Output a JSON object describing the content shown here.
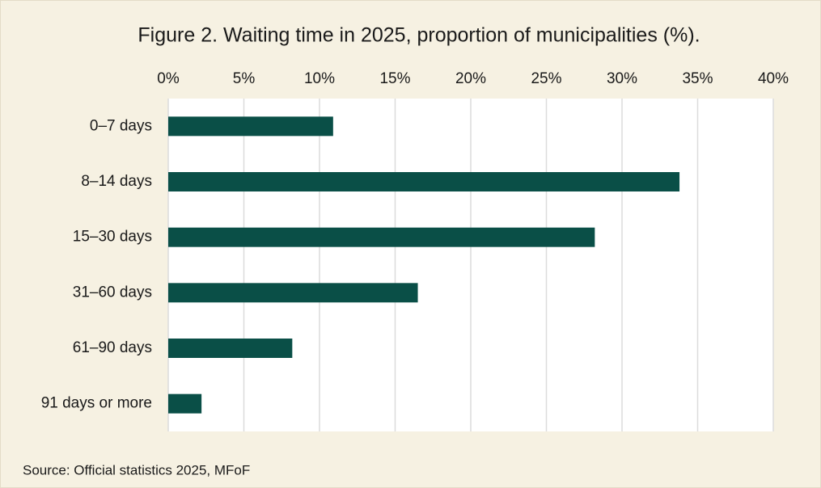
{
  "chart_data": {
    "type": "bar",
    "orientation": "horizontal",
    "title": "Figure 2. Waiting time in 2025, proportion of municipalities (%).",
    "source": "Source: Official statistics 2025, MFoF",
    "categories": [
      "0–7 days",
      "8–14 days",
      "15–30 days",
      "31–60 days",
      "61–90 days",
      "91 days or more"
    ],
    "values": [
      10.9,
      33.8,
      28.2,
      16.5,
      8.2,
      2.2
    ],
    "color": "#0a4f47",
    "xlim": [
      0,
      40
    ],
    "xticks": [
      {
        "value": 0,
        "label": "0%"
      },
      {
        "value": 5,
        "label": "5%"
      },
      {
        "value": 10,
        "label": "10%"
      },
      {
        "value": 15,
        "label": "15%"
      },
      {
        "value": 20,
        "label": "20%"
      },
      {
        "value": 25,
        "label": "25%"
      },
      {
        "value": 30,
        "label": "30%"
      },
      {
        "value": 35,
        "label": "35%"
      },
      {
        "value": 40,
        "label": "40%"
      }
    ],
    "grid": true
  }
}
